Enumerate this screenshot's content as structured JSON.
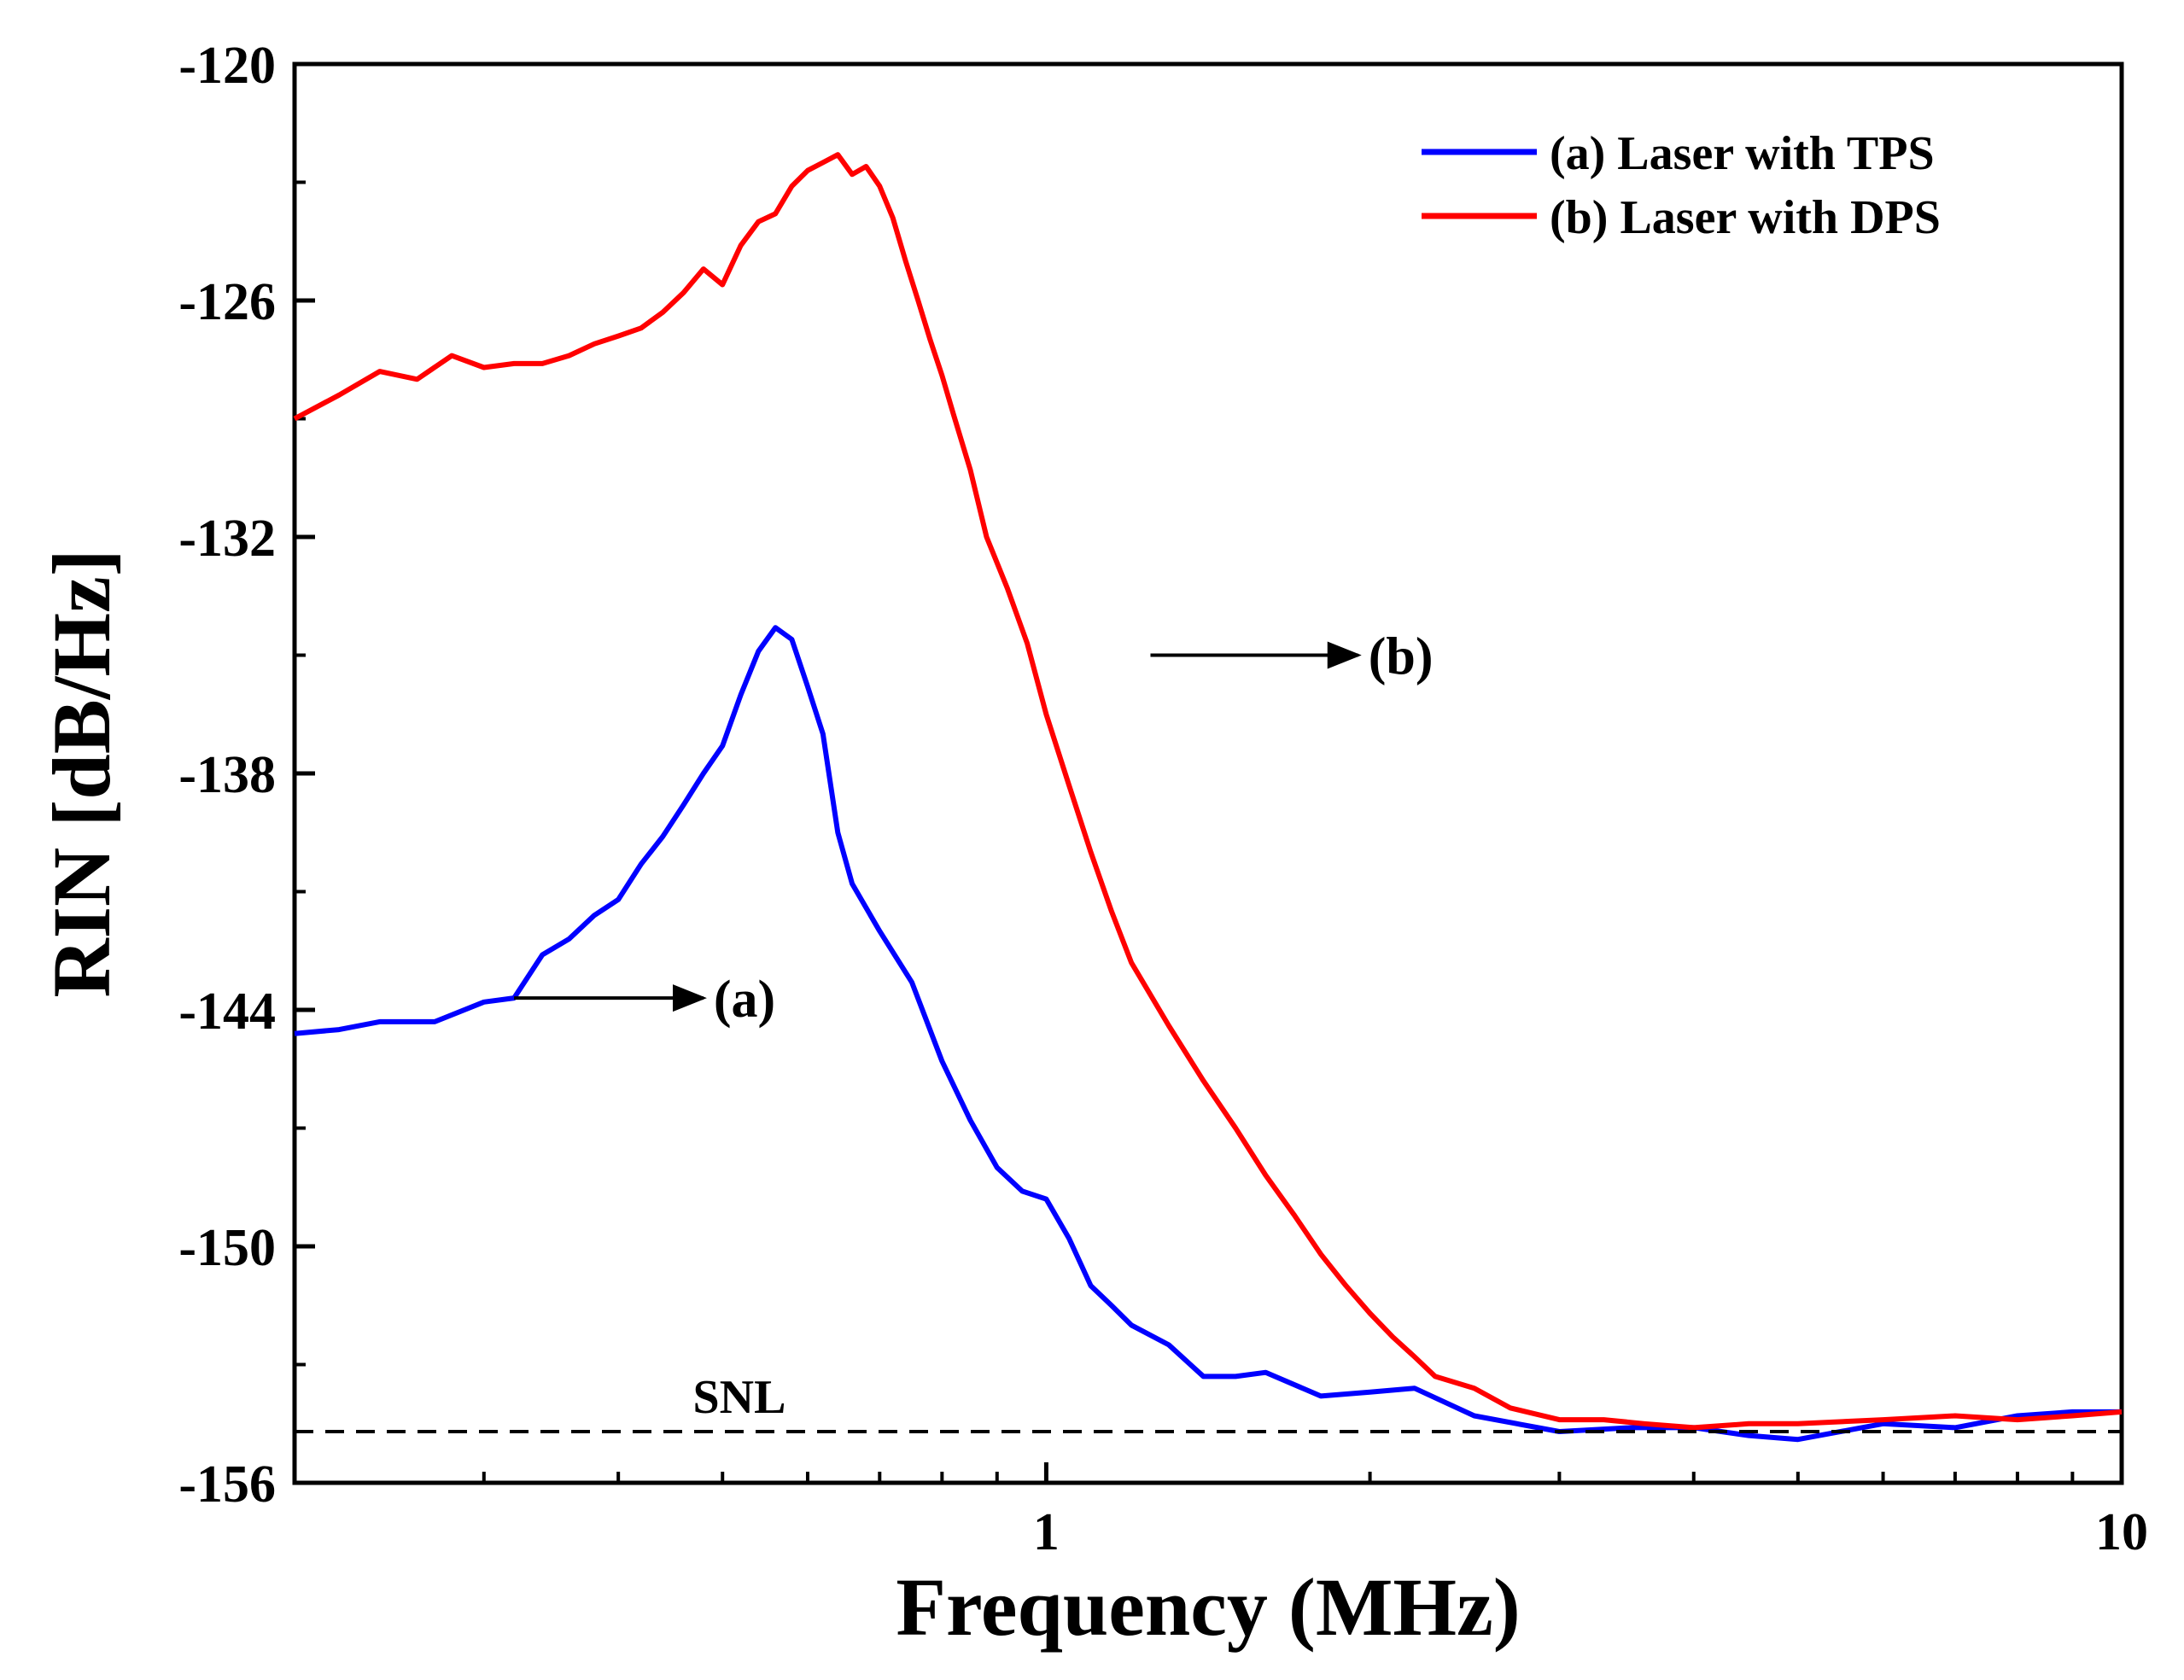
{
  "chart_data": {
    "type": "line",
    "xscale": "log",
    "xlabel": "Frequency (MHz)",
    "ylabel": "RIN [dB/Hz]",
    "xlim": [
      0.2,
      10
    ],
    "ylim": [
      -156,
      -120
    ],
    "xticks": [
      {
        "value": 1,
        "label": "1"
      },
      {
        "value": 10,
        "label": "10"
      }
    ],
    "yticks": [
      {
        "value": -120,
        "label": "-120"
      },
      {
        "value": -126,
        "label": "-126"
      },
      {
        "value": -132,
        "label": "-132"
      },
      {
        "value": -138,
        "label": "-138"
      },
      {
        "value": -144,
        "label": "-144"
      },
      {
        "value": -150,
        "label": "-150"
      },
      {
        "value": -156,
        "label": "-156"
      }
    ],
    "grid": false,
    "legend_position": "top-right",
    "series": [
      {
        "name": "(a) Laser with TPS",
        "color": "#0000ff",
        "annotation": "(a)",
        "x": [
          0.2,
          0.22,
          0.24,
          0.27,
          0.3,
          0.32,
          0.34,
          0.36,
          0.38,
          0.4,
          0.42,
          0.44,
          0.46,
          0.48,
          0.5,
          0.52,
          0.54,
          0.56,
          0.58,
          0.6,
          0.62,
          0.64,
          0.66,
          0.7,
          0.75,
          0.8,
          0.85,
          0.9,
          0.95,
          1.0,
          1.05,
          1.1,
          1.15,
          1.2,
          1.3,
          1.4,
          1.5,
          1.6,
          1.8,
          2.0,
          2.2,
          2.5,
          3.0,
          3.5,
          4.0,
          4.5,
          5.0,
          6.0,
          7.0,
          8.0,
          9.0,
          10.0
        ],
        "y": [
          -144.6,
          -144.5,
          -144.3,
          -144.3,
          -143.8,
          -143.7,
          -142.6,
          -142.2,
          -141.6,
          -141.2,
          -140.3,
          -139.6,
          -138.8,
          -138.0,
          -137.3,
          -136.0,
          -134.9,
          -134.3,
          -134.6,
          -135.8,
          -137.0,
          -139.5,
          -140.8,
          -142.0,
          -143.3,
          -145.3,
          -146.8,
          -148.0,
          -148.6,
          -148.8,
          -149.8,
          -151.0,
          -151.5,
          -152.0,
          -152.5,
          -153.3,
          -153.3,
          -153.2,
          -153.8,
          -153.7,
          -153.6,
          -154.3,
          -154.7,
          -154.6,
          -154.6,
          -154.8,
          -154.9,
          -154.5,
          -154.6,
          -154.3,
          -154.2,
          -154.2
        ]
      },
      {
        "name": "(b) Laser with DPS",
        "color": "#ff0000",
        "annotation": "(b)",
        "x": [
          0.2,
          0.22,
          0.24,
          0.26,
          0.28,
          0.3,
          0.32,
          0.34,
          0.36,
          0.38,
          0.4,
          0.42,
          0.44,
          0.46,
          0.48,
          0.5,
          0.52,
          0.54,
          0.56,
          0.58,
          0.6,
          0.62,
          0.64,
          0.66,
          0.68,
          0.7,
          0.72,
          0.74,
          0.76,
          0.78,
          0.8,
          0.82,
          0.85,
          0.88,
          0.92,
          0.96,
          1.0,
          1.05,
          1.1,
          1.15,
          1.2,
          1.3,
          1.4,
          1.5,
          1.6,
          1.7,
          1.8,
          1.9,
          2.0,
          2.1,
          2.2,
          2.3,
          2.5,
          2.7,
          3.0,
          3.3,
          3.6,
          4.0,
          4.5,
          5.0,
          6.0,
          7.0,
          8.0,
          9.0,
          10.0
        ],
        "y": [
          -129.0,
          -128.4,
          -127.8,
          -128.0,
          -127.4,
          -127.7,
          -127.6,
          -127.6,
          -127.4,
          -127.1,
          -126.9,
          -126.7,
          -126.3,
          -125.8,
          -125.2,
          -125.6,
          -124.6,
          -124.0,
          -123.8,
          -123.1,
          -122.7,
          -122.5,
          -122.3,
          -122.8,
          -122.6,
          -123.1,
          -123.9,
          -125.0,
          -126.0,
          -127.0,
          -127.9,
          -128.9,
          -130.3,
          -132.0,
          -133.3,
          -134.7,
          -136.5,
          -138.3,
          -140.0,
          -141.5,
          -142.8,
          -144.4,
          -145.8,
          -147.0,
          -148.2,
          -149.2,
          -150.2,
          -151.0,
          -151.7,
          -152.3,
          -152.8,
          -153.3,
          -153.6,
          -154.1,
          -154.4,
          -154.4,
          -154.5,
          -154.6,
          -154.5,
          -154.5,
          -154.4,
          -154.3,
          -154.4,
          -154.3,
          -154.2
        ]
      }
    ],
    "reference_lines": [
      {
        "label": "SNL",
        "y": -154.7,
        "style": "dashed"
      }
    ],
    "annotations": [
      {
        "label": "(a)",
        "from": [
          0.32,
          -143.7
        ],
        "to": [
          0.48,
          -143.7
        ]
      },
      {
        "label": "(b)",
        "from": [
          1.25,
          -135.0
        ],
        "to": [
          1.95,
          -135.0
        ]
      }
    ]
  }
}
